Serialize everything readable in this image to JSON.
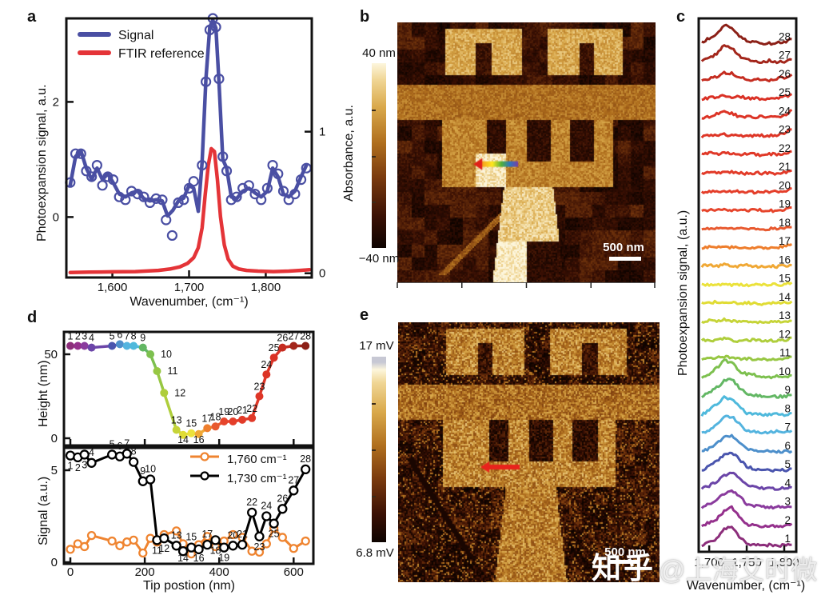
{
  "watermarks": {
    "zhihu": "知乎",
    "handle": "@上海艾时微"
  },
  "panels": {
    "a": {
      "letter": "a",
      "xlabel": "Wavenumber, (cm⁻¹)",
      "ylabel_left": "Photoexpansion signal, a.u.",
      "ylabel_right": "Absorbance, a.u.",
      "legend": [
        {
          "label": "Signal",
          "color": "#4A4FA3"
        },
        {
          "label": "FTIR reference",
          "color": "#E43438"
        }
      ]
    },
    "b": {
      "letter": "b",
      "colorbar_max": "40 nm",
      "colorbar_min": "−40 nm",
      "scalebar": "500 nm"
    },
    "c": {
      "letter": "c",
      "xlabel": "Wavenumber, (cm⁻¹)",
      "ylabel": "Photoexpansion signal, (a.u.)"
    },
    "d": {
      "letter": "d",
      "ylabel_top": "Height (nm)",
      "ylabel_bottom": "Signal (a.u.)",
      "xlabel": "Tip postion (nm)",
      "legend": [
        {
          "label": "1,760 cm⁻¹",
          "color": "#EF8430"
        },
        {
          "label": "1,730 cm⁻¹",
          "color": "#000000"
        }
      ]
    },
    "e": {
      "letter": "e",
      "colorbar_max": "17 mV",
      "colorbar_min": "6.8 mV",
      "scalebar": "500 nm"
    }
  },
  "chart_data": [
    {
      "id": "a",
      "type": "line",
      "xlabel": "Wavenumber, (cm⁻¹)",
      "ylabel_left": "Photoexpansion signal, a.u.",
      "ylabel_right": "Absorbance, a.u.",
      "xlim": [
        1540,
        1860
      ],
      "ylim_left": [
        -1.05,
        3.45
      ],
      "ylim_right": [
        -0.03,
        1.8
      ],
      "xticks": [
        [
          1600,
          "1,600"
        ],
        [
          1700,
          "1,700"
        ],
        [
          1800,
          "1,800"
        ]
      ],
      "yticks_left": [
        [
          0,
          "0"
        ],
        [
          2,
          "2"
        ]
      ],
      "yticks_right": [
        [
          0,
          "0"
        ],
        [
          1,
          "1"
        ]
      ],
      "grid": false,
      "legend_position": "top-left",
      "series": [
        {
          "name": "Signal",
          "axis": "left",
          "color": "#4A4FA3",
          "marker": "open-circle",
          "x": [
            1545,
            1552,
            1559,
            1566,
            1573,
            1580,
            1587,
            1594,
            1601,
            1609,
            1617,
            1625,
            1633,
            1641,
            1649,
            1657,
            1665,
            1672,
            1679,
            1686,
            1693,
            1700,
            1706,
            1712,
            1717,
            1722,
            1727,
            1731,
            1735,
            1739,
            1744,
            1749,
            1755,
            1762,
            1770,
            1778,
            1786,
            1794,
            1802,
            1809,
            1816,
            1823,
            1830,
            1838,
            1846,
            1853
          ],
          "y": [
            0.55,
            1.05,
            1.15,
            0.85,
            0.65,
            0.85,
            0.65,
            0.75,
            0.6,
            0.4,
            0.35,
            0.42,
            0.45,
            0.32,
            0.28,
            0.3,
            0.28,
            0.02,
            0.12,
            0.28,
            0.33,
            0.55,
            0.5,
            0.1,
            0.95,
            2.4,
            3.3,
            3.42,
            3.28,
            2.35,
            1.0,
            0.85,
            0.35,
            0.32,
            0.45,
            0.5,
            0.42,
            0.35,
            0.45,
            0.85,
            0.7,
            0.4,
            0.35,
            0.45,
            0.7,
            0.9
          ],
          "marker_x": [
            1545,
            1552,
            1559,
            1566,
            1573,
            1580,
            1587,
            1594,
            1601,
            1609,
            1617,
            1625,
            1633,
            1641,
            1649,
            1657,
            1665,
            1670,
            1678,
            1686,
            1693,
            1700,
            1706,
            1717,
            1722,
            1727,
            1731,
            1735,
            1739,
            1744,
            1749,
            1755,
            1762,
            1770,
            1778,
            1786,
            1794,
            1802,
            1809,
            1816,
            1823,
            1830,
            1838,
            1846,
            1853
          ],
          "marker_y": [
            0.6,
            1.1,
            1.1,
            0.8,
            0.7,
            0.9,
            0.55,
            0.7,
            0.65,
            0.35,
            0.3,
            0.45,
            0.4,
            0.35,
            0.25,
            0.32,
            0.3,
            -0.05,
            -0.32,
            0.25,
            0.3,
            0.5,
            0.62,
            0.9,
            2.35,
            3.25,
            3.45,
            3.3,
            2.4,
            1.05,
            0.8,
            0.3,
            0.35,
            0.5,
            0.55,
            0.4,
            0.3,
            0.5,
            0.9,
            0.75,
            0.45,
            0.3,
            0.4,
            0.65,
            0.85
          ]
        },
        {
          "name": "FTIR reference",
          "axis": "right",
          "color": "#E43438",
          "marker": "none",
          "x": [
            1545,
            1570,
            1600,
            1630,
            1660,
            1675,
            1688,
            1698,
            1706,
            1712,
            1717,
            1721,
            1725,
            1729,
            1733,
            1737,
            1741,
            1746,
            1751,
            1757,
            1765,
            1775,
            1790,
            1810,
            1830,
            1845,
            1857
          ],
          "y": [
            0.005,
            0.008,
            0.01,
            0.012,
            0.02,
            0.03,
            0.045,
            0.07,
            0.11,
            0.18,
            0.32,
            0.55,
            0.76,
            0.88,
            0.86,
            0.66,
            0.4,
            0.2,
            0.1,
            0.05,
            0.03,
            0.02,
            0.015,
            0.012,
            0.015,
            0.02,
            0.025
          ]
        }
      ]
    },
    {
      "id": "b",
      "type": "afm-image",
      "description": "AFM topography, gold trident pattern on dark polymer background",
      "colorbar": {
        "max": "40 nm",
        "min": "−40 nm"
      },
      "scalebar": "500 nm",
      "arrow": "rainbow-left"
    },
    {
      "id": "c",
      "type": "stacked-lines",
      "xlabel": "Wavenumber, (cm⁻¹)",
      "ylabel": "Photoexpansion signal, (a.u.)",
      "xlim": [
        1686,
        1816
      ],
      "xticks": [
        [
          1700,
          "1,700"
        ],
        [
          1750,
          "1,750"
        ],
        [
          1800,
          "1,800"
        ]
      ],
      "x_start": 1690,
      "x_step": 10,
      "spectra": [
        {
          "n": 1,
          "color": "#8C2E7B",
          "y": [
            0.1,
            0.25,
            0.45,
            0.95,
            1.05,
            0.55,
            0.18,
            0.1,
            0.08,
            0.1,
            0.07,
            0.1,
            0.12
          ]
        },
        {
          "n": 2,
          "color": "#94308C",
          "y": [
            0.15,
            0.3,
            0.5,
            0.9,
            1.1,
            0.6,
            0.2,
            0.15,
            0.12,
            0.1,
            0.12,
            0.08,
            0.25
          ]
        },
        {
          "n": 3,
          "color": "#8A3B9D",
          "y": [
            0.1,
            0.3,
            0.55,
            0.85,
            1.05,
            0.7,
            0.3,
            0.22,
            0.18,
            0.12,
            0.15,
            0.1,
            0.15
          ]
        },
        {
          "n": 4,
          "color": "#6B45A8",
          "y": [
            0.12,
            0.28,
            0.5,
            0.8,
            1.0,
            0.75,
            0.35,
            0.25,
            0.15,
            0.18,
            0.12,
            0.15,
            0.18
          ]
        },
        {
          "n": 5,
          "color": "#4A55AE",
          "y": [
            0.1,
            0.35,
            0.6,
            0.9,
            1.05,
            0.7,
            0.3,
            0.2,
            0.15,
            0.1,
            0.15,
            0.12,
            0.2
          ]
        },
        {
          "n": 6,
          "color": "#4D8FCB",
          "y": [
            0.12,
            0.3,
            0.55,
            0.85,
            1.0,
            0.65,
            0.3,
            0.2,
            0.18,
            0.15,
            0.1,
            0.12,
            0.15
          ]
        },
        {
          "n": 7,
          "color": "#54B4DF",
          "y": [
            0.1,
            0.3,
            0.6,
            0.95,
            1.0,
            0.6,
            0.25,
            0.2,
            0.15,
            0.18,
            0.22,
            0.15,
            0.25
          ]
        },
        {
          "n": 8,
          "color": "#4FB9DC",
          "y": [
            0.1,
            0.35,
            0.65,
            1.0,
            0.95,
            0.5,
            0.2,
            0.15,
            0.12,
            0.1,
            0.15,
            0.1,
            0.2
          ]
        },
        {
          "n": 9,
          "color": "#63B764",
          "y": [
            0.1,
            0.3,
            0.55,
            0.9,
            1.0,
            0.55,
            0.25,
            0.15,
            0.1,
            0.12,
            0.1,
            0.08,
            0.18
          ]
        },
        {
          "n": 10,
          "color": "#7DC04F",
          "y": [
            0.12,
            0.3,
            0.6,
            1.0,
            0.9,
            0.45,
            0.3,
            0.25,
            0.15,
            0.12,
            0.18,
            0.12,
            0.2
          ]
        },
        {
          "n": 11,
          "color": "#97C743",
          "y": [
            0.08,
            0.12,
            0.18,
            0.22,
            0.15,
            0.1,
            0.12,
            0.08,
            0.1,
            0.06,
            0.1,
            0.12,
            0.22
          ]
        },
        {
          "n": 12,
          "color": "#AFCE3C",
          "y": [
            0.1,
            0.15,
            0.1,
            0.2,
            0.12,
            0.08,
            0.1,
            0.15,
            0.08,
            0.12,
            0.08,
            0.1,
            0.25
          ]
        },
        {
          "n": 13,
          "color": "#C6D438",
          "y": [
            0.08,
            0.18,
            0.1,
            0.22,
            0.12,
            0.15,
            0.08,
            0.1,
            0.12,
            0.08,
            0.1,
            0.08,
            0.15
          ]
        },
        {
          "n": 14,
          "color": "#E0DC35",
          "y": [
            0.1,
            0.12,
            0.18,
            0.1,
            0.15,
            0.08,
            0.12,
            0.1,
            0.08,
            0.12,
            0.1,
            0.15,
            0.2
          ]
        },
        {
          "n": 15,
          "color": "#EBE23C",
          "y": [
            0.08,
            0.1,
            0.12,
            0.15,
            0.1,
            0.12,
            0.08,
            0.1,
            0.12,
            0.08,
            0.12,
            0.1,
            0.22
          ]
        },
        {
          "n": 16,
          "color": "#F0A835",
          "y": [
            0.1,
            0.15,
            0.1,
            0.18,
            0.12,
            0.1,
            0.15,
            0.08,
            0.1,
            0.12,
            0.08,
            0.12,
            0.15
          ]
        },
        {
          "n": 17,
          "color": "#EE7E2D",
          "y": [
            0.08,
            0.12,
            0.15,
            0.1,
            0.12,
            0.08,
            0.1,
            0.12,
            0.1,
            0.08,
            0.12,
            0.15,
            0.28
          ]
        },
        {
          "n": 18,
          "color": "#E85A30",
          "y": [
            0.1,
            0.12,
            0.1,
            0.15,
            0.1,
            0.12,
            0.08,
            0.1,
            0.08,
            0.12,
            0.1,
            0.12,
            0.2
          ]
        },
        {
          "n": 19,
          "color": "#E6452C",
          "y": [
            0.08,
            0.1,
            0.15,
            0.12,
            0.1,
            0.08,
            0.12,
            0.1,
            0.12,
            0.08,
            0.1,
            0.12,
            0.25
          ]
        },
        {
          "n": 20,
          "color": "#E43E2A",
          "y": [
            0.1,
            0.12,
            0.08,
            0.15,
            0.1,
            0.12,
            0.1,
            0.08,
            0.12,
            0.1,
            0.15,
            0.1,
            0.3
          ]
        },
        {
          "n": 21,
          "color": "#E23B29",
          "y": [
            0.08,
            0.15,
            0.1,
            0.12,
            0.15,
            0.1,
            0.08,
            0.12,
            0.1,
            0.12,
            0.08,
            0.15,
            0.25
          ]
        },
        {
          "n": 22,
          "color": "#E03928",
          "y": [
            0.1,
            0.2,
            0.12,
            0.25,
            0.15,
            0.1,
            0.15,
            0.12,
            0.08,
            0.15,
            0.1,
            0.12,
            0.28
          ]
        },
        {
          "n": 23,
          "color": "#DE3627",
          "y": [
            0.08,
            0.1,
            0.12,
            0.18,
            0.12,
            0.1,
            0.08,
            0.1,
            0.12,
            0.1,
            0.15,
            0.2,
            0.45
          ]
        },
        {
          "n": 24,
          "color": "#DC3426",
          "y": [
            0.1,
            0.12,
            0.3,
            0.45,
            0.3,
            0.15,
            0.12,
            0.1,
            0.15,
            0.1,
            0.12,
            0.2,
            0.5
          ]
        },
        {
          "n": 25,
          "color": "#DA3125",
          "y": [
            0.08,
            0.15,
            0.2,
            0.3,
            0.2,
            0.25,
            0.12,
            0.15,
            0.1,
            0.12,
            0.15,
            0.2,
            0.35
          ]
        },
        {
          "n": 26,
          "color": "#C52C20",
          "y": [
            0.1,
            0.2,
            0.3,
            0.5,
            0.45,
            0.25,
            0.15,
            0.12,
            0.15,
            0.1,
            0.2,
            0.25,
            0.4
          ]
        },
        {
          "n": 27,
          "color": "#A3261B",
          "y": [
            0.12,
            0.3,
            0.5,
            0.95,
            0.8,
            0.4,
            0.2,
            0.12,
            0.1,
            0.15,
            0.1,
            0.12,
            0.2
          ]
        },
        {
          "n": 28,
          "color": "#8C2017",
          "y": [
            0.15,
            0.35,
            0.55,
            1.05,
            0.9,
            0.45,
            0.2,
            0.15,
            0.1,
            0.08,
            0.1,
            0.15,
            0.3
          ]
        }
      ]
    },
    {
      "id": "d_top",
      "type": "scatter-line",
      "ylabel": "Height (nm)",
      "yticks": [
        [
          0,
          "0"
        ],
        [
          50,
          "50"
        ]
      ],
      "xticks": [
        0,
        200,
        400,
        600
      ],
      "position_nm": [
        0,
        20,
        38,
        57,
        112,
        133,
        152,
        170,
        195,
        215,
        233,
        252,
        285,
        303,
        325,
        345,
        368,
        390,
        413,
        437,
        462,
        488,
        508,
        527,
        547,
        570,
        600,
        632
      ],
      "height_nm": [
        55,
        55,
        55,
        54,
        55,
        56,
        55,
        55,
        54,
        50,
        40,
        27,
        5,
        2,
        3,
        2.5,
        6,
        7,
        10,
        10,
        11,
        12,
        25,
        38,
        48,
        54,
        55,
        55
      ]
    },
    {
      "id": "d_bottom",
      "type": "scatter-line",
      "xlabel": "Tip postion (nm)",
      "ylabel": "Signal (a.u.)",
      "xticks": [
        [
          0,
          "0"
        ],
        [
          200,
          "200"
        ],
        [
          400,
          "400"
        ],
        [
          600,
          "600"
        ]
      ],
      "yticks": [
        [
          0,
          "0"
        ],
        [
          5,
          "5"
        ]
      ],
      "series": [
        {
          "name": "1,760 cm⁻¹",
          "color": "#EF8430",
          "values": [
            0.7,
            1.0,
            0.85,
            1.45,
            1.15,
            0.9,
            1.1,
            1.2,
            0.5,
            1.3,
            1.1,
            1.5,
            1.7,
            1.0,
            0.45,
            0.95,
            1.4,
            0.85,
            1.15,
            1.5,
            1.35,
            0.6,
            0.55,
            1.0,
            1.85,
            1.35,
            0.75,
            1.15
          ]
        },
        {
          "name": "1,730 cm⁻¹",
          "color": "#000000",
          "values": [
            5.8,
            5.7,
            5.85,
            5.4,
            5.85,
            5.75,
            5.9,
            5.45,
            4.4,
            4.5,
            1.2,
            1.3,
            0.9,
            0.6,
            0.8,
            0.7,
            0.95,
            1.2,
            0.8,
            0.9,
            0.95,
            2.7,
            1.4,
            2.5,
            2.1,
            2.9,
            3.9,
            5.05
          ]
        }
      ]
    },
    {
      "id": "e",
      "type": "afm-image",
      "description": "PFM/voltage map of the same trident pattern, speckled gold on dark background",
      "colorbar": {
        "max": "17 mV",
        "min": "6.8 mV"
      },
      "scalebar": "500 nm",
      "arrow": "red-left"
    }
  ]
}
